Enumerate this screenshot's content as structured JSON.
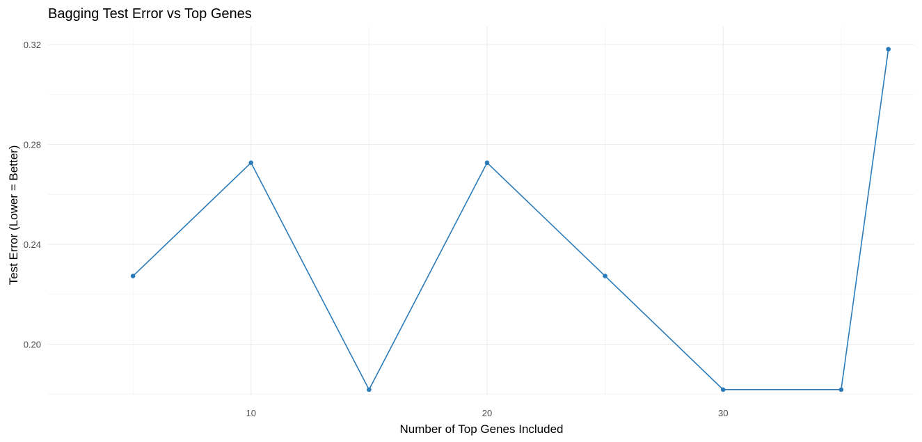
{
  "chart_data": {
    "type": "line",
    "title": "Bagging Test Error vs Top Genes",
    "xlabel": "Number of Top Genes Included",
    "ylabel": "Test Error (Lower = Better)",
    "x": [
      5,
      10,
      15,
      20,
      25,
      30,
      35,
      37
    ],
    "series": [
      {
        "values": [
          0.2273,
          0.2727,
          0.1818,
          0.2727,
          0.2273,
          0.1818,
          0.1818,
          0.3182
        ]
      }
    ],
    "xlim": [
      1.4,
      38.1
    ],
    "ylim": [
      0.1795,
      0.3273
    ],
    "xticks": [
      10,
      20,
      30
    ],
    "xtick_labels": [
      "10",
      "20",
      "30"
    ],
    "yticks": [
      0.2,
      0.24,
      0.28,
      0.32
    ],
    "ytick_labels": [
      "0.20",
      "0.24",
      "0.28",
      "0.32"
    ],
    "grid": true,
    "line_color": "#2b7bb9"
  }
}
